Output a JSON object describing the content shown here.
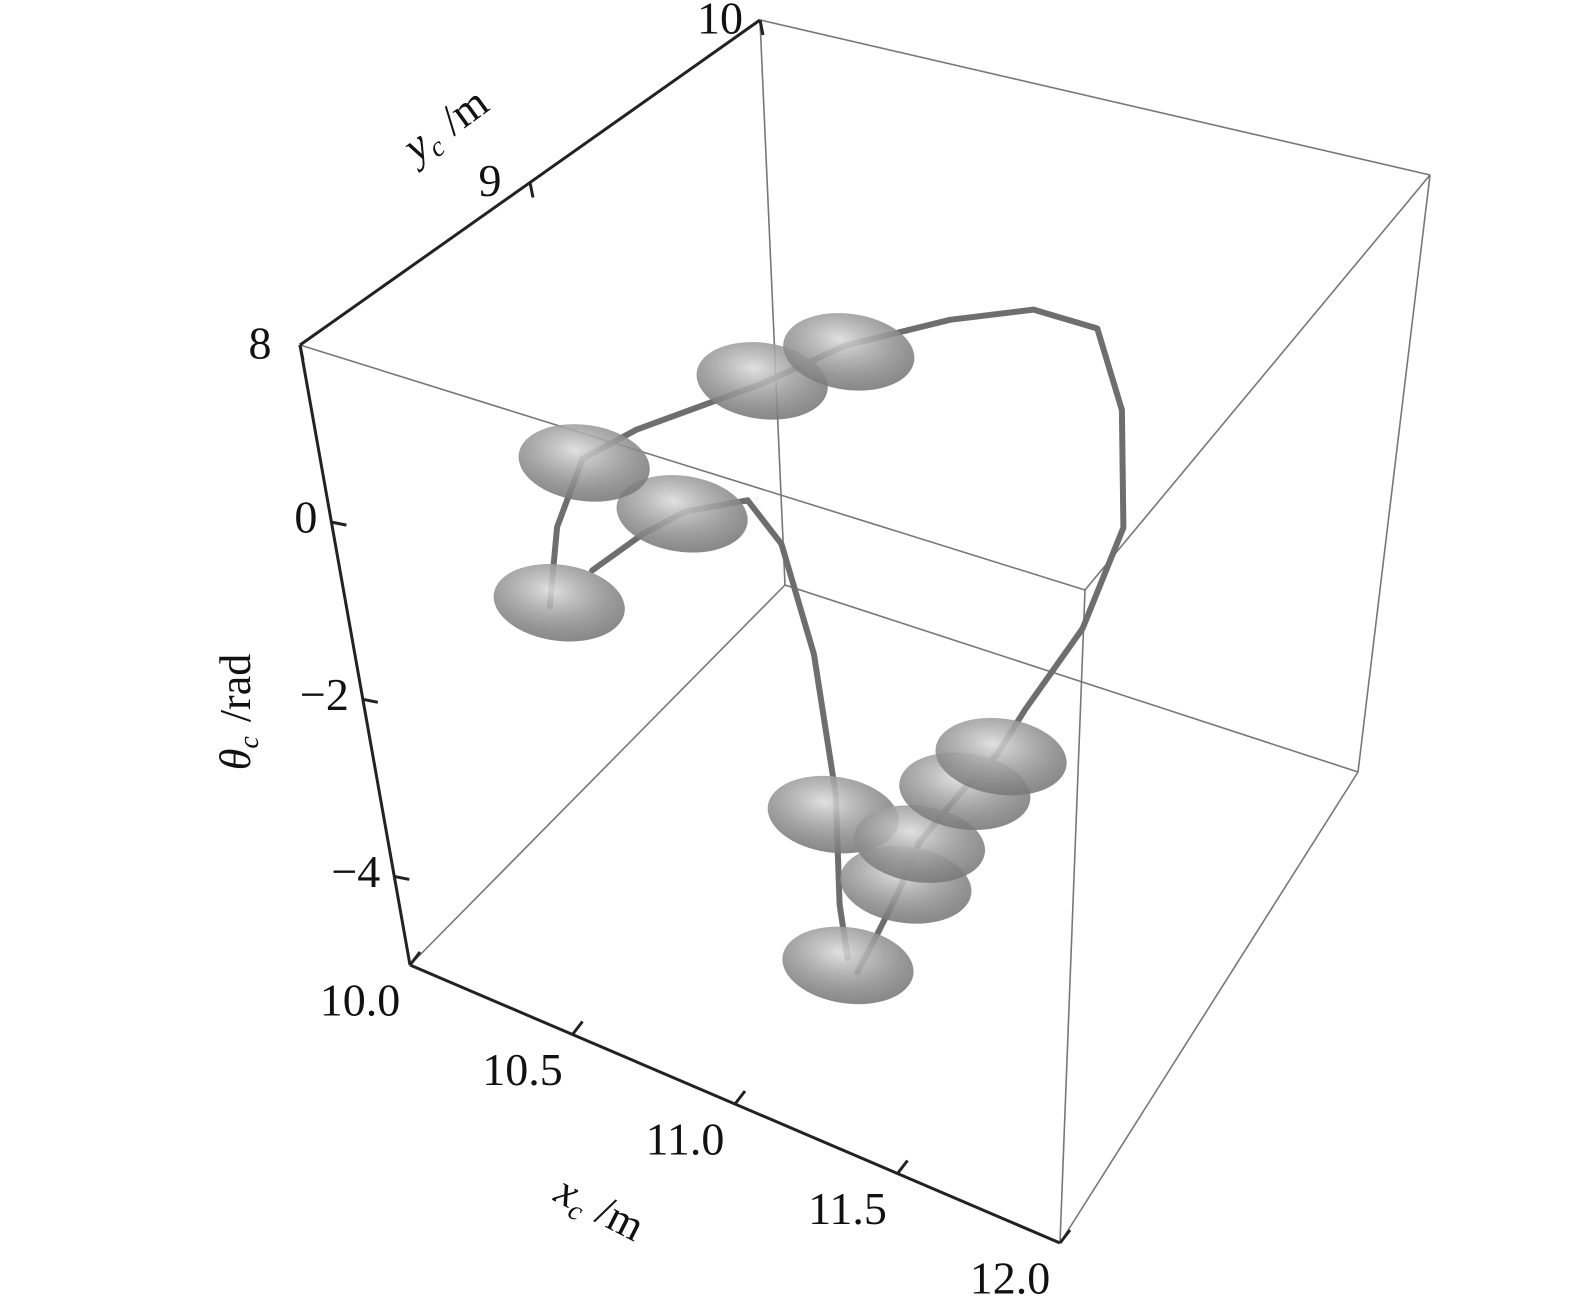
{
  "chart_data": {
    "type": "line3d",
    "xlabel": {
      "symbol": "x",
      "subscript": "c",
      "unit": "/m"
    },
    "ylabel": {
      "symbol": "y",
      "subscript": "c",
      "unit": "/m"
    },
    "zlabel": {
      "symbol": "θ",
      "subscript": "c",
      "unit": "/rad"
    },
    "xlim": [
      10,
      12
    ],
    "ylim": [
      8,
      10
    ],
    "zlim": [
      -5,
      2
    ],
    "xticks": [
      {
        "value": 10,
        "label": "10.0"
      },
      10.5,
      {
        "value": 11,
        "label": "11.0"
      },
      11.5,
      {
        "value": 12,
        "label": "12.0"
      }
    ],
    "yticks": [
      8,
      9,
      10
    ],
    "zticks": [
      {
        "value": -4,
        "label": "−4"
      },
      {
        "value": -2,
        "label": "−2"
      },
      0
    ],
    "series": [
      {
        "color": "#6e6e6e",
        "x": [
          10.19,
          10.24,
          10.27,
          10.37,
          10.68,
          10.86,
          11.1,
          11.28,
          11.41,
          11.49,
          11.51,
          11.43,
          11.28,
          11.25,
          11.18,
          11.11,
          11.1,
          11.07,
          11.07
        ],
        "y": [
          8.6,
          8.6,
          8.7,
          8.8,
          8.9,
          9.0,
          9.1,
          9.2,
          9.3,
          9.3,
          9.3,
          9.24,
          9.2,
          9.1,
          9.0,
          8.9,
          8.8,
          8.7,
          8.6
        ],
        "z": [
          -1.9,
          -0.92,
          -0.3,
          -0.04,
          0.67,
          1.11,
          1.47,
          1.57,
          1.27,
          0.42,
          -0.91,
          -2.02,
          -3.04,
          -3.33,
          -3.66,
          -4.05,
          -4.36,
          -4.74,
          -4.85
        ]
      },
      {
        "color": "#6e6e6e",
        "x": [
          10.33,
          10.49,
          10.62,
          10.8,
          10.89,
          10.97,
          11.02,
          11.02,
          11.04
        ],
        "y": [
          8.6,
          8.6,
          8.6,
          8.6,
          8.6,
          8.6,
          8.6,
          8.6,
          8.6
        ],
        "z": [
          -1.3,
          -0.67,
          -0.24,
          0.12,
          -0.26,
          -1.4,
          -2.92,
          -4.16,
          -4.74
        ]
      }
    ],
    "ellipsoids": {
      "color": "#b5b5b5",
      "x": [
        10.22,
        10.61,
        10.34,
        10.68,
        10.87,
        11.01,
        11.04,
        11.12,
        11.11,
        11.2,
        11.26
      ],
      "y": [
        8.6,
        8.6,
        8.6,
        8.9,
        9.0,
        8.6,
        8.6,
        8.8,
        8.9,
        9.0,
        9.1
      ],
      "z": [
        -1.82,
        -0.28,
        -0.05,
        0.7,
        1.05,
        -3.16,
        -4.82,
        -4.28,
        -4.07,
        -3.59,
        -3.36
      ]
    }
  }
}
